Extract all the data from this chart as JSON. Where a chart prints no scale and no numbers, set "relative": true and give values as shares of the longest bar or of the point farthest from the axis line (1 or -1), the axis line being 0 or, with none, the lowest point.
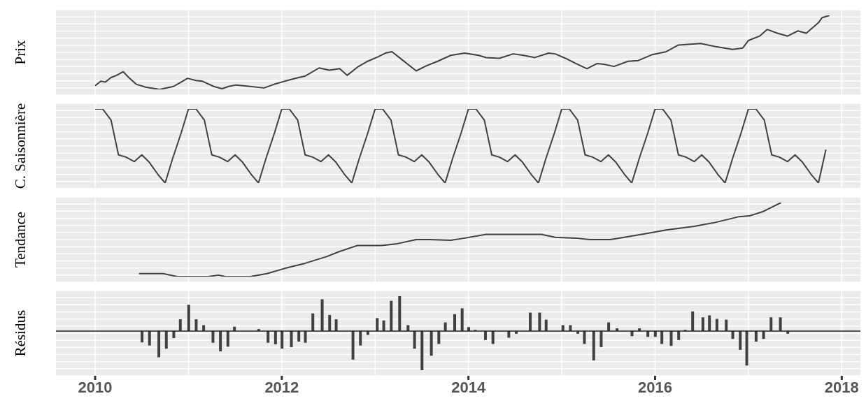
{
  "chart_data": [
    {
      "type": "line",
      "ylabel": "Prix",
      "relative": true,
      "grid": true,
      "tick_labels": false,
      "xlim": [
        2009.58,
        2018.2
      ],
      "xticks": [
        2010,
        2012,
        2014,
        2016,
        2018
      ],
      "series": [
        {
          "color": "#404040",
          "x": [
            2010.0,
            2010.06,
            2010.11,
            2010.17,
            2010.23,
            2010.3,
            2010.36,
            2010.44,
            2010.54,
            2010.69,
            2010.84,
            2010.99,
            2011.08,
            2011.15,
            2011.27,
            2011.36,
            2011.43,
            2011.51,
            2011.66,
            2011.81,
            2011.92,
            2012.03,
            2012.18,
            2012.25,
            2012.4,
            2012.51,
            2012.62,
            2012.7,
            2012.81,
            2012.92,
            2013.03,
            2013.11,
            2013.18,
            2013.29,
            2013.44,
            2013.55,
            2013.67,
            2013.81,
            2013.96,
            2014.11,
            2014.19,
            2014.33,
            2014.48,
            2014.59,
            2014.71,
            2014.86,
            2014.93,
            2015.04,
            2015.15,
            2015.27,
            2015.38,
            2015.45,
            2015.56,
            2015.71,
            2015.82,
            2015.97,
            2016.12,
            2016.25,
            2016.38,
            2016.49,
            2016.64,
            2016.83,
            2016.94,
            2017.0,
            2017.12,
            2017.2,
            2017.31,
            2017.42,
            2017.53,
            2017.62,
            2017.75,
            2017.79,
            2017.87
          ],
          "values": [
            0.05,
            0.11,
            0.1,
            0.16,
            0.19,
            0.24,
            0.16,
            0.07,
            0.03,
            0,
            0.04,
            0.15,
            0.12,
            0.11,
            0.04,
            0.01,
            0.04,
            0.06,
            0.04,
            0.02,
            0.07,
            0.11,
            0.16,
            0.18,
            0.29,
            0.26,
            0.28,
            0.19,
            0.3,
            0.38,
            0.44,
            0.49,
            0.51,
            0.4,
            0.25,
            0.32,
            0.38,
            0.46,
            0.49,
            0.46,
            0.43,
            0.42,
            0.48,
            0.46,
            0.43,
            0.49,
            0.48,
            0.42,
            0.35,
            0.28,
            0.35,
            0.34,
            0.31,
            0.38,
            0.39,
            0.47,
            0.51,
            0.6,
            0.61,
            0.62,
            0.58,
            0.54,
            0.56,
            0.66,
            0.72,
            0.81,
            0.76,
            0.72,
            0.79,
            0.76,
            0.9,
            0.97,
            1
          ]
        }
      ]
    },
    {
      "type": "line",
      "ylabel": "C. Saisonnière",
      "relative": true,
      "grid": true,
      "tick_labels": false,
      "xlim": [
        2009.58,
        2018.2
      ],
      "xticks": [
        2010,
        2012,
        2014,
        2016,
        2018
      ],
      "series": [
        {
          "color": "#404040",
          "x": [
            2010.0,
            2010.08,
            2010.17,
            2010.25,
            2010.33,
            2010.42,
            2010.5,
            2010.58,
            2010.67,
            2010.75,
            2010.83,
            2010.92,
            2011.0,
            2011.08,
            2011.17,
            2011.25,
            2011.33,
            2011.42,
            2011.5,
            2011.58,
            2011.67,
            2011.75,
            2011.83,
            2011.92,
            2012.0,
            2012.08,
            2012.17,
            2012.25,
            2012.33,
            2012.42,
            2012.5,
            2012.58,
            2012.67,
            2012.75,
            2012.83,
            2012.92,
            2013.0,
            2013.08,
            2013.17,
            2013.25,
            2013.33,
            2013.42,
            2013.5,
            2013.58,
            2013.67,
            2013.75,
            2013.83,
            2013.92,
            2014.0,
            2014.08,
            2014.17,
            2014.25,
            2014.33,
            2014.42,
            2014.5,
            2014.58,
            2014.67,
            2014.75,
            2014.83,
            2014.92,
            2015.0,
            2015.08,
            2015.17,
            2015.25,
            2015.33,
            2015.42,
            2015.5,
            2015.58,
            2015.67,
            2015.75,
            2015.83,
            2015.92,
            2016.0,
            2016.08,
            2016.17,
            2016.25,
            2016.33,
            2016.42,
            2016.5,
            2016.58,
            2016.67,
            2016.75,
            2016.83,
            2016.92,
            2017.0,
            2017.08,
            2017.17,
            2017.25,
            2017.33,
            2017.42,
            2017.5,
            2017.58,
            2017.67,
            2017.75,
            2017.83
          ],
          "values": [
            1,
            1,
            0.85,
            0.38,
            0.35,
            0.29,
            0.38,
            0.28,
            0.12,
            0,
            0.33,
            0.67,
            1,
            1,
            0.85,
            0.38,
            0.35,
            0.29,
            0.38,
            0.28,
            0.12,
            0,
            0.33,
            0.67,
            1,
            1,
            0.85,
            0.38,
            0.35,
            0.29,
            0.38,
            0.28,
            0.12,
            0,
            0.33,
            0.67,
            1,
            1,
            0.85,
            0.38,
            0.35,
            0.29,
            0.38,
            0.28,
            0.12,
            0,
            0.33,
            0.67,
            1,
            1,
            0.85,
            0.38,
            0.35,
            0.29,
            0.38,
            0.28,
            0.12,
            0,
            0.33,
            0.67,
            1,
            1,
            0.85,
            0.38,
            0.35,
            0.29,
            0.38,
            0.28,
            0.12,
            0,
            0.33,
            0.67,
            1,
            1,
            0.85,
            0.38,
            0.35,
            0.29,
            0.38,
            0.28,
            0.12,
            0,
            0.33,
            0.67,
            1,
            1,
            0.85,
            0.38,
            0.35,
            0.29,
            0.38,
            0.28,
            0.12,
            0,
            0.45
          ]
        }
      ]
    },
    {
      "type": "line",
      "ylabel": "Tendance",
      "relative": true,
      "grid": true,
      "tick_labels": false,
      "xlim": [
        2009.58,
        2018.2
      ],
      "xticks": [
        2010,
        2012,
        2014,
        2016,
        2018
      ],
      "series": [
        {
          "color": "#404040",
          "x": [
            2010.47,
            2010.73,
            2010.88,
            2011.21,
            2011.32,
            2011.4,
            2011.66,
            2011.84,
            2012.03,
            2012.25,
            2012.48,
            2012.62,
            2012.81,
            2013.07,
            2013.22,
            2013.44,
            2013.59,
            2013.81,
            2013.96,
            2014.19,
            2014.63,
            2014.78,
            2014.93,
            2015.15,
            2015.3,
            2015.52,
            2015.67,
            2015.9,
            2016.12,
            2016.42,
            2016.64,
            2016.9,
            2017.01,
            2017.16,
            2017.35
          ],
          "values": [
            0.04,
            0.04,
            0,
            0,
            0.02,
            0,
            0,
            0.04,
            0.11,
            0.18,
            0.27,
            0.34,
            0.42,
            0.42,
            0.44,
            0.5,
            0.5,
            0.49,
            0.52,
            0.57,
            0.57,
            0.57,
            0.53,
            0.52,
            0.5,
            0.5,
            0.53,
            0.58,
            0.63,
            0.68,
            0.73,
            0.81,
            0.82,
            0.88,
            1
          ]
        }
      ]
    },
    {
      "type": "bar",
      "ylabel": "Résidus",
      "relative": true,
      "grid": true,
      "tick_labels": "x",
      "xlim": [
        2009.58,
        2018.2
      ],
      "xticks": [
        2010,
        2012,
        2014,
        2016,
        2018
      ],
      "series": [
        {
          "color": "#404040",
          "x": [
            2010.5,
            2010.58,
            2010.68,
            2010.76,
            2010.84,
            2010.91,
            2011.0,
            2011.08,
            2011.16,
            2011.26,
            2011.34,
            2011.42,
            2011.49,
            2011.75,
            2011.85,
            2011.93,
            2012.0,
            2012.1,
            2012.18,
            2012.25,
            2012.33,
            2012.43,
            2012.51,
            2012.58,
            2012.76,
            2012.84,
            2012.92,
            2013.02,
            2013.09,
            2013.17,
            2013.26,
            2013.35,
            2013.42,
            2013.5,
            2013.6,
            2013.68,
            2013.75,
            2013.85,
            2013.93,
            2014.0,
            2014.07,
            2014.18,
            2014.26,
            2014.43,
            2014.51,
            2014.66,
            2014.76,
            2014.83,
            2015.01,
            2015.09,
            2015.17,
            2015.24,
            2015.34,
            2015.42,
            2015.5,
            2015.59,
            2015.75,
            2015.83,
            2015.92,
            2016.0,
            2016.07,
            2016.17,
            2016.25,
            2016.32,
            2016.4,
            2016.51,
            2016.58,
            2016.66,
            2016.76,
            2016.83,
            2016.91,
            2016.98,
            2017.08,
            2017.16,
            2017.24,
            2017.34,
            2017.42
          ],
          "values": [
            -0.29,
            -0.37,
            -0.67,
            -0.45,
            -0.18,
            0.3,
            0.67,
            0.3,
            0.15,
            -0.3,
            -0.52,
            -0.4,
            0.11,
            0.05,
            -0.3,
            -0.34,
            -0.45,
            -0.41,
            -0.27,
            -0.3,
            0.45,
            0.81,
            0.41,
            0.3,
            -0.73,
            -0.37,
            -0.1,
            0.33,
            0.27,
            0.77,
            0.89,
            0.15,
            -0.45,
            -1,
            -0.63,
            -0.33,
            0.22,
            0.43,
            0.58,
            0.1,
            0.03,
            -0.23,
            -0.33,
            -0.17,
            -0.07,
            0.47,
            0.47,
            0.29,
            0.15,
            0.15,
            -0.07,
            -0.33,
            -0.75,
            -0.41,
            0.22,
            0.07,
            -0.13,
            0.07,
            -0.15,
            -0.15,
            -0.33,
            -0.38,
            -0.23,
            0.03,
            0.5,
            0.35,
            0.4,
            0.31,
            0.29,
            -0.2,
            -0.48,
            -0.88,
            -0.27,
            -0.2,
            0.35,
            0.35,
            -0.07
          ]
        }
      ]
    }
  ]
}
